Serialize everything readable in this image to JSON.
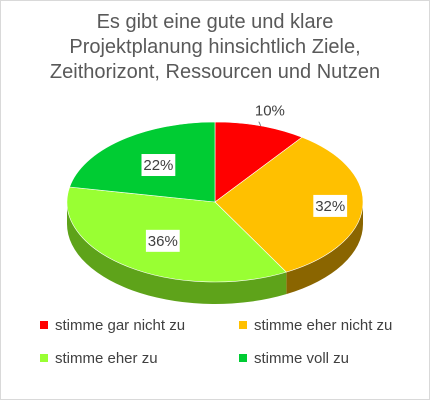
{
  "chart_data": {
    "type": "pie",
    "title_lines": [
      "Es gibt eine gute und klare",
      "Projektplanung hinsichtlich Ziele,",
      "Zeithorizont, Ressourcen und Nutzen"
    ],
    "categories": [
      "stimme gar nicht zu",
      "stimme eher nicht zu",
      "stimme eher zu",
      "stimme voll zu"
    ],
    "values": [
      10,
      32,
      36,
      22
    ],
    "value_labels": [
      "10%",
      "32%",
      "36%",
      "22%"
    ],
    "colors": [
      "#ff0000",
      "#ffc000",
      "#99ff33",
      "#00cc33"
    ],
    "side_colors": [
      "#990000",
      "#8a6500",
      "#5ea31a",
      "#007a1f"
    ],
    "legend_position": "bottom",
    "style": "3d"
  }
}
